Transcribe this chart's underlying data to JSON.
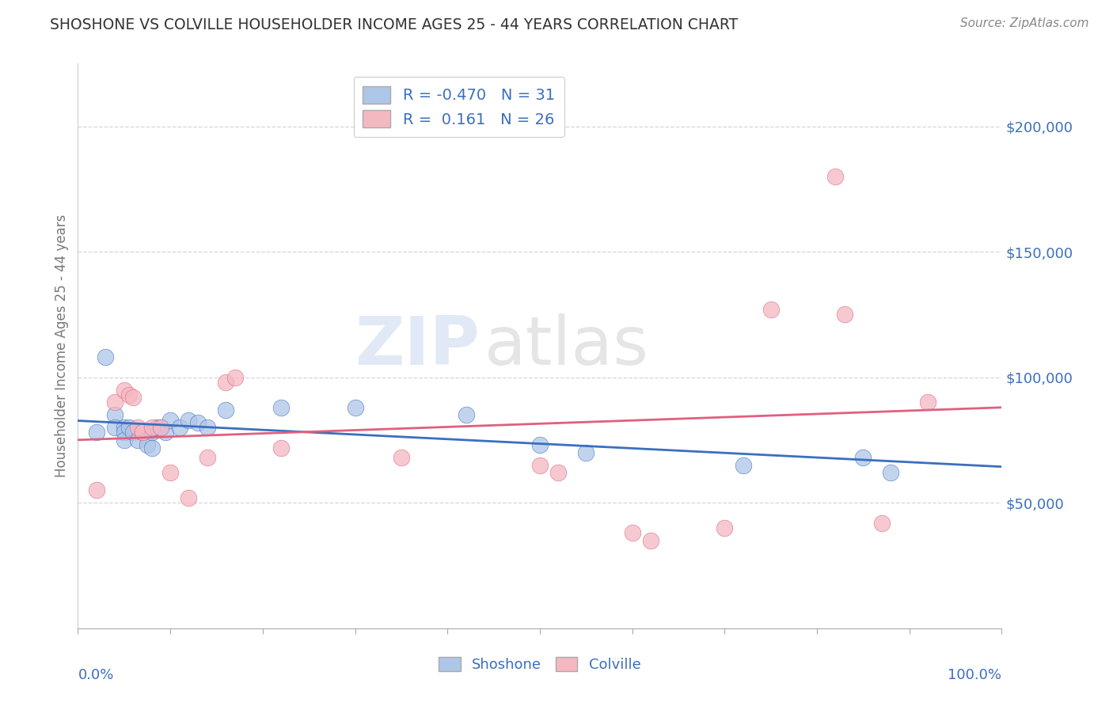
{
  "title": "SHOSHONE VS COLVILLE HOUSEHOLDER INCOME AGES 25 - 44 YEARS CORRELATION CHART",
  "source": "Source: ZipAtlas.com",
  "ylabel": "Householder Income Ages 25 - 44 years",
  "xlim": [
    0.0,
    1.0
  ],
  "ylim": [
    0,
    225000
  ],
  "yticks": [
    50000,
    100000,
    150000,
    200000
  ],
  "ytick_labels": [
    "$50,000",
    "$100,000",
    "$150,000",
    "$200,000"
  ],
  "xtick_left_label": "0.0%",
  "xtick_right_label": "100.0%",
  "shoshone_color": "#aec6e8",
  "colville_color": "#f4b8c1",
  "shoshone_line_color": "#3b6fbe",
  "colville_line_color": "#e0607e",
  "R_shoshone": -0.47,
  "N_shoshone": 31,
  "R_colville": 0.161,
  "N_colville": 26,
  "background_color": "#ffffff",
  "watermark_zip": "ZIP",
  "watermark_atlas": "atlas",
  "grid_color": "#cccccc",
  "title_color": "#333333",
  "source_color": "#888888",
  "ylabel_color": "#777777",
  "tick_color": "#3b6fbe",
  "shoshone_x": [
    0.02,
    0.03,
    0.04,
    0.04,
    0.05,
    0.05,
    0.05,
    0.055,
    0.06,
    0.065,
    0.07,
    0.075,
    0.08,
    0.08,
    0.085,
    0.09,
    0.095,
    0.1,
    0.11,
    0.12,
    0.13,
    0.14,
    0.16,
    0.22,
    0.3,
    0.42,
    0.5,
    0.55,
    0.72,
    0.85,
    0.88
  ],
  "shoshone_y": [
    78000,
    108000,
    85000,
    80000,
    80000,
    78000,
    75000,
    80000,
    78000,
    75000,
    78000,
    73000,
    78000,
    72000,
    80000,
    80000,
    78000,
    83000,
    80000,
    83000,
    82000,
    80000,
    87000,
    88000,
    88000,
    85000,
    73000,
    70000,
    65000,
    68000,
    62000
  ],
  "colville_x": [
    0.02,
    0.04,
    0.05,
    0.055,
    0.06,
    0.065,
    0.07,
    0.08,
    0.09,
    0.1,
    0.12,
    0.14,
    0.16,
    0.17,
    0.22,
    0.35,
    0.5,
    0.52,
    0.6,
    0.62,
    0.7,
    0.75,
    0.82,
    0.83,
    0.87,
    0.92
  ],
  "colville_y": [
    55000,
    90000,
    95000,
    93000,
    92000,
    80000,
    78000,
    80000,
    80000,
    62000,
    52000,
    68000,
    98000,
    100000,
    72000,
    68000,
    65000,
    62000,
    38000,
    35000,
    40000,
    127000,
    180000,
    125000,
    42000,
    90000
  ]
}
